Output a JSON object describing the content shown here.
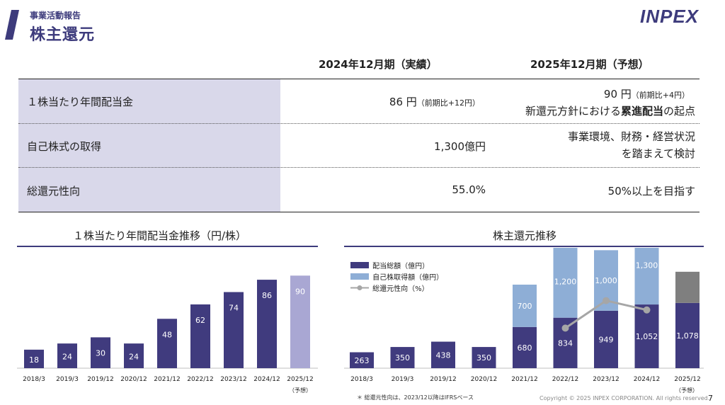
{
  "header": {
    "section": "事業活動報告",
    "title": "株主還元",
    "logo": "INPEX",
    "brand_color": "#3d3b7c"
  },
  "table": {
    "col1_header": "2024年12月期（実績）",
    "col2_header": "2025年12月期（予想）",
    "rows": [
      {
        "label": "１株当たり年間配当金",
        "v2024": "86 円",
        "v2024_note": "（前期比+12円）",
        "v2025_line1": "90 円",
        "v2025_note": "（前期比+4円）",
        "v2025_line2_pre": "新還元方針における",
        "v2025_line2_bold": "累進配当",
        "v2025_line2_post": "の起点"
      },
      {
        "label": "自己株式の取得",
        "v2024": "1,300億円",
        "v2025_line1": "事業環境、財務・経営状況",
        "v2025_line2": "を踏まえて検討"
      },
      {
        "label": "総還元性向",
        "v2024": "55.0%",
        "v2025": "50%以上を目指す"
      }
    ]
  },
  "chart1": {
    "title": "１株当たり年間配当金推移（円/株）",
    "forecast_label": "（予想）"
  },
  "chart2": {
    "title": "株主還元推移",
    "forecast_label": "（予想）",
    "legend": [
      "配当総額（億円）",
      "自己株取得額（億円）",
      "総還元性向（%）"
    ]
  },
  "footnote": "＊ 総還元性向は、2023/12以降はIFRSベース",
  "copyright": "Copyright © 2025 INPEX CORPORATION. All rights reserved.",
  "page_number": "7",
  "colors": {
    "dividend": "#403b7e",
    "forecast_dividend": "#a9a7d3",
    "buyback": "#8eaed6",
    "payout_line": "#a6a6a6",
    "forecast_buyback": "#7f7f7f",
    "label_bg": "#d9d8ea"
  },
  "chart_data": [
    {
      "type": "bar",
      "title": "１株当たり年間配当金推移（円/株）",
      "categories": [
        "2018/3",
        "2019/3",
        "2019/12",
        "2020/12",
        "2021/12",
        "2022/12",
        "2023/12",
        "2024/12",
        "2025/12"
      ],
      "values": [
        18,
        24,
        30,
        24,
        48,
        62,
        74,
        86,
        90
      ],
      "ylim": [
        0,
        95
      ]
    },
    {
      "type": "bar",
      "title": "株主還元推移",
      "categories": [
        "2018/3",
        "2019/3",
        "2019/12",
        "2020/12",
        "2021/12",
        "2022/12",
        "2023/12",
        "2024/12",
        "2025/12"
      ],
      "series": [
        {
          "name": "配当総額（億円）",
          "values": [
            263,
            350,
            438,
            350,
            680,
            834,
            949,
            1052,
            1078
          ]
        },
        {
          "name": "自己株取得額（億円）",
          "values": [
            0,
            0,
            0,
            0,
            700,
            1200,
            1000,
            1300,
            null
          ]
        },
        {
          "name": "総還元性向（%）",
          "values": [
            null,
            null,
            null,
            null,
            null,
            44.1,
            60.6,
            55.0,
            null
          ]
        }
      ],
      "ylim": [
        0,
        2500
      ]
    }
  ]
}
